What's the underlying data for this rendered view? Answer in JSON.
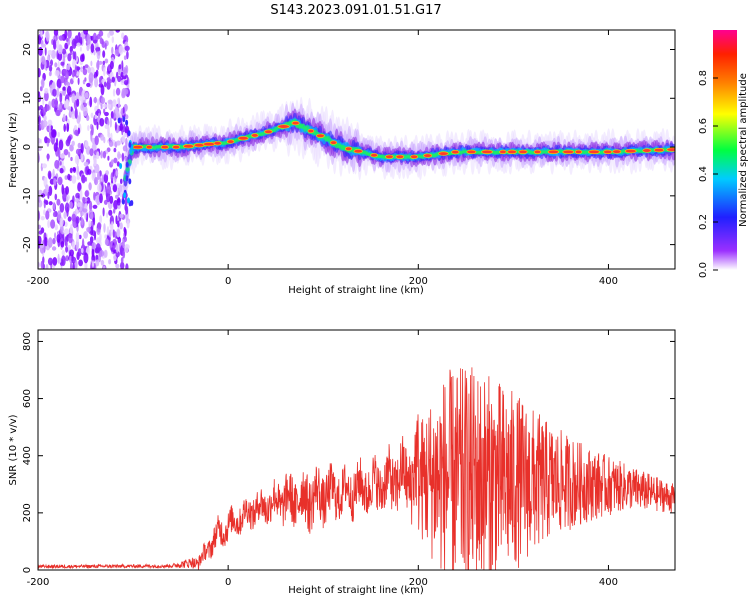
{
  "title": "S143.2023.091.01.51.G17",
  "colors": {
    "snr_line": "#e8302a",
    "axis": "#000000"
  },
  "chart_data": [
    {
      "type": "heatmap",
      "xlabel": "Height of straight line (km)",
      "ylabel": "Frequency (Hz)",
      "xlim": [
        -200,
        470
      ],
      "ylim": [
        -25,
        24
      ],
      "xticks": [
        -200,
        0,
        200,
        400
      ],
      "yticks": [
        -20,
        -10,
        0,
        10,
        20
      ],
      "colorbar": {
        "label": "Normalized spectral amplitude",
        "range": [
          0,
          1
        ],
        "ticks": [
          "0.0",
          "0.2",
          "0.4",
          "0.6",
          "0.8"
        ],
        "colormap": "rainbow (violet-blue-cyan-green-yellow-orange-red-magenta)"
      },
      "ridge": {
        "description": "dominant frequency track",
        "x": [
          -110,
          -100,
          -80,
          -50,
          0,
          40,
          70,
          90,
          120,
          160,
          200,
          240,
          300,
          340,
          400,
          470
        ],
        "y": [
          -8,
          0,
          0,
          0,
          1,
          3,
          5,
          3,
          0,
          -2,
          -2,
          -1,
          -1,
          -1,
          -1,
          -0.5
        ]
      },
      "noise_region_x": [
        -200,
        -105
      ]
    },
    {
      "type": "line",
      "series": [
        {
          "values_note": "dense SNR trace"
        }
      ],
      "xlabel": "Height of straight line (km)",
      "ylabel": "SNR (10 * v/v)",
      "xlim": [
        -200,
        470
      ],
      "ylim": [
        0,
        840
      ],
      "xticks": [
        -200,
        0,
        200,
        400
      ],
      "yticks": [
        0,
        200,
        400,
        600,
        800
      ],
      "envelope": {
        "x": [
          -200,
          -60,
          -30,
          -10,
          20,
          50,
          80,
          120,
          160,
          190,
          200,
          230,
          260,
          300,
          340,
          380,
          420,
          470
        ],
        "base": [
          12,
          14,
          30,
          130,
          200,
          240,
          250,
          270,
          300,
          330,
          320,
          320,
          320,
          310,
          310,
          300,
          290,
          250
        ],
        "amp": [
          6,
          6,
          25,
          50,
          50,
          70,
          100,
          80,
          90,
          120,
          200,
          380,
          400,
          320,
          200,
          130,
          80,
          50
        ]
      }
    }
  ]
}
